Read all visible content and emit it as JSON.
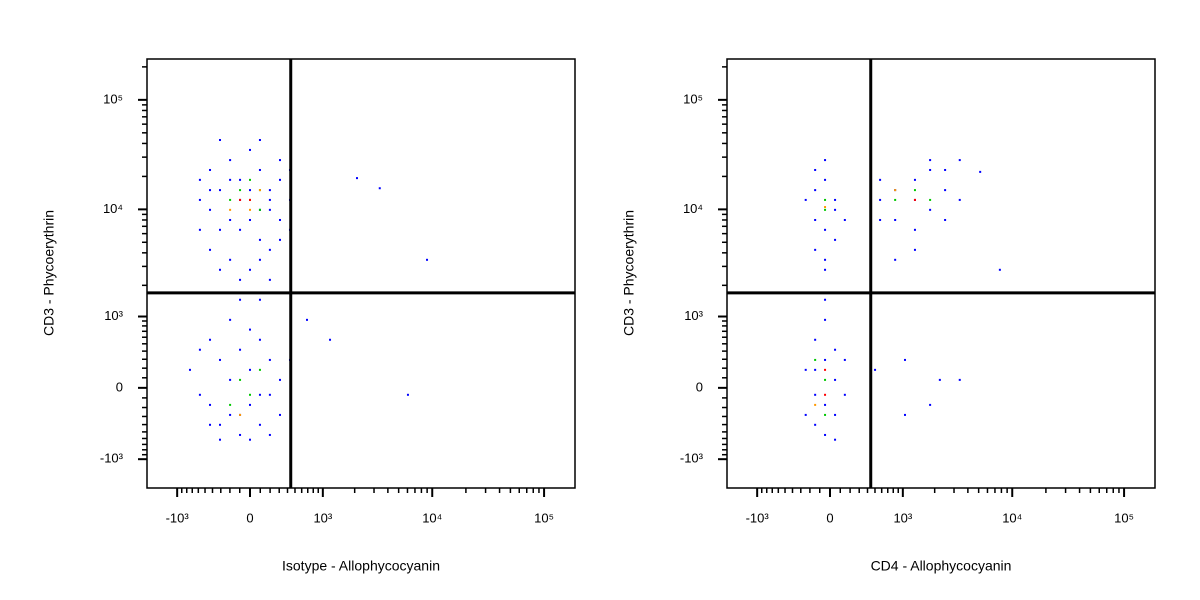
{
  "chart_data": [
    {
      "type": "scatter",
      "xlabel": "Isotype - Allophycocyanin",
      "ylabel": "CD3 - Phycoerythrin",
      "xscale": "biexponential",
      "yscale": "biexponential",
      "xlim": [
        -1930,
        189000
      ],
      "ylim": [
        -1900,
        236000
      ],
      "xticks": [
        {
          "value": -1000,
          "label": "-10³"
        },
        0,
        {
          "value": 1000,
          "label": "10³"
        },
        {
          "value": 10000,
          "label": "10⁴"
        },
        {
          "value": 100000,
          "label": "10⁵"
        }
      ],
      "yticks": [
        {
          "value": -1000,
          "label": "-10³"
        },
        0,
        {
          "value": 1000,
          "label": "10³"
        },
        {
          "value": 10000,
          "label": "10⁴"
        },
        {
          "value": 100000,
          "label": "10⁵"
        }
      ],
      "xminorticks": [
        -900,
        -800,
        -700,
        -600,
        -500,
        -400,
        -300,
        -200,
        -100,
        100,
        200,
        300,
        400,
        500,
        600,
        700,
        800,
        900,
        2000,
        3000,
        4000,
        5000,
        6000,
        7000,
        8000,
        9000,
        20000,
        30000,
        40000,
        50000,
        60000,
        70000,
        80000,
        90000
      ],
      "yminorticks": [
        -900,
        -800,
        -700,
        -600,
        -500,
        -400,
        -300,
        -200,
        -100,
        100,
        200,
        300,
        400,
        500,
        600,
        700,
        800,
        900,
        2000,
        3000,
        4000,
        5000,
        6000,
        7000,
        8000,
        9000,
        20000,
        30000,
        40000,
        50000,
        60000,
        70000,
        80000,
        90000,
        200000
      ],
      "quadrant": {
        "x": 442,
        "y": 1700
      },
      "series": [
        {
          "color": "#0000ff",
          "x": [
            -432,
            -309,
            -198,
            -97,
            0,
            97,
            198,
            309,
            -575,
            -432,
            -309,
            -198,
            97,
            198,
            309,
            432,
            -575,
            -432,
            -198,
            0,
            97,
            198,
            -97,
            309,
            432,
            -309,
            97,
            -97,
            0,
            198,
            -198,
            309,
            -97,
            0,
            432,
            -575,
            -309,
            198,
            97,
            -432,
            2100,
            3380,
            8980,
            -432,
            -309,
            -198,
            -97,
            0,
            97,
            198,
            309,
            -575,
            -432,
            -309,
            -198,
            -97,
            0,
            97,
            198,
            309,
            -740,
            -575,
            -198,
            0,
            97,
            -97,
            198,
            -309,
            0,
            432,
            -432,
            97,
            -97,
            687,
            1175,
            6060
          ],
          "y": [
            22900,
            15000,
            28200,
            18600,
            34900,
            22900,
            15000,
            18600,
            12200,
            9900,
            6500,
            8000,
            5260,
            9900,
            8000,
            12200,
            6500,
            4260,
            3450,
            2790,
            3450,
            4260,
            2250,
            5260,
            6500,
            43000,
            43000,
            12200,
            8000,
            12200,
            18600,
            28200,
            6500,
            15000,
            22900,
            18600,
            2790,
            2250,
            9900,
            15000,
            19300,
            15600,
            3450,
            560,
            292,
            79,
            418,
            182,
            560,
            292,
            79,
            -69,
            -172,
            -403,
            -282,
            -545,
            -172,
            -403,
            -69,
            -282,
            182,
            418,
            925,
            730,
            1460,
            1460,
            -545,
            -620,
            -620,
            292,
            -403,
            -69,
            -282,
            925,
            560,
            -69
          ]
        },
        {
          "color": "#00c800",
          "x": [
            -97,
            0,
            97,
            -198,
            97,
            0,
            -97,
            0,
            -198,
            97
          ],
          "y": [
            15000,
            12200,
            15000,
            12200,
            9900,
            18600,
            79,
            -69,
            -172,
            182
          ]
        },
        {
          "color": "#ff9900",
          "x": [
            97,
            -198,
            0,
            -97
          ],
          "y": [
            15000,
            9900,
            9900,
            -282
          ]
        },
        {
          "color": "#ff0000",
          "x": [
            0,
            -97
          ],
          "y": [
            12200,
            12200
          ]
        }
      ]
    },
    {
      "type": "scatter",
      "xlabel": "CD4 - Allophycocyanin",
      "ylabel": "CD3 - Phycoerythrin",
      "xscale": "biexponential",
      "yscale": "biexponential",
      "xlim": [
        -1930,
        189000
      ],
      "ylim": [
        -1900,
        236000
      ],
      "xticks": [
        {
          "value": -1000,
          "label": "-10³"
        },
        0,
        {
          "value": 1000,
          "label": "10³"
        },
        {
          "value": 10000,
          "label": "10⁴"
        },
        {
          "value": 100000,
          "label": "10⁵"
        }
      ],
      "yticks": [
        {
          "value": -1000,
          "label": "-10³"
        },
        0,
        {
          "value": 1000,
          "label": "10³"
        },
        {
          "value": 10000,
          "label": "10⁴"
        },
        {
          "value": 100000,
          "label": "10⁵"
        }
      ],
      "xminorticks": [
        -900,
        -800,
        -700,
        -600,
        -500,
        -400,
        -300,
        -200,
        -100,
        100,
        200,
        300,
        400,
        500,
        600,
        700,
        800,
        900,
        2000,
        3000,
        4000,
        5000,
        6000,
        7000,
        8000,
        9000,
        20000,
        30000,
        40000,
        50000,
        60000,
        70000,
        80000,
        90000
      ],
      "yminorticks": [
        -900,
        -800,
        -700,
        -600,
        -500,
        -400,
        -300,
        -200,
        -100,
        100,
        200,
        300,
        400,
        500,
        600,
        700,
        800,
        900,
        2000,
        3000,
        4000,
        5000,
        6000,
        7000,
        8000,
        9000,
        20000,
        30000,
        40000,
        50000,
        60000,
        70000,
        80000,
        90000,
        200000
      ],
      "quadrant": {
        "x": 442,
        "y": 1700
      },
      "series": [
        {
          "color": "#0000ff",
          "x": [
            -146,
            -48,
            49,
            -146,
            -48,
            49,
            -146,
            -48,
            -245,
            146,
            -48,
            -146,
            49,
            -48,
            575,
            837,
            1310,
            1815,
            2490,
            3380,
            837,
            1310,
            1815,
            575,
            1310,
            837,
            2490,
            1815,
            3380,
            1310,
            2490,
            575,
            7750,
            5160,
            -146,
            -48,
            49,
            -146,
            -48,
            49,
            -146,
            -48,
            49,
            -245,
            146,
            -48,
            -245,
            146,
            -146,
            49,
            -48,
            1050,
            2230,
            3380,
            1050,
            1815,
            501
          ],
          "y": [
            15000,
            18600,
            12200,
            8000,
            6500,
            9900,
            4260,
            3450,
            12200,
            8000,
            28200,
            22900,
            5260,
            2790,
            12200,
            15000,
            18600,
            22900,
            15000,
            12200,
            8000,
            6500,
            9900,
            8000,
            4260,
            3450,
            8000,
            28200,
            28200,
            12200,
            22900,
            18600,
            2790,
            22000,
            560,
            292,
            79,
            -69,
            -172,
            -282,
            -403,
            -545,
            418,
            182,
            -69,
            925,
            -282,
            292,
            182,
            -620,
            1460,
            292,
            79,
            79,
            -282,
            -172,
            182
          ]
        },
        {
          "color": "#00c800",
          "x": [
            -48,
            -48,
            1310,
            1815,
            837,
            -48,
            -48,
            -146
          ],
          "y": [
            12200,
            9900,
            15000,
            12200,
            12200,
            79,
            -282,
            292
          ]
        },
        {
          "color": "#ff9900",
          "x": [
            -146,
            837,
            -48
          ],
          "y": [
            -172,
            15000,
            10500
          ]
        },
        {
          "color": "#ff0000",
          "x": [
            -48,
            1310,
            -48
          ],
          "y": [
            -69,
            12200,
            182
          ]
        }
      ]
    }
  ]
}
